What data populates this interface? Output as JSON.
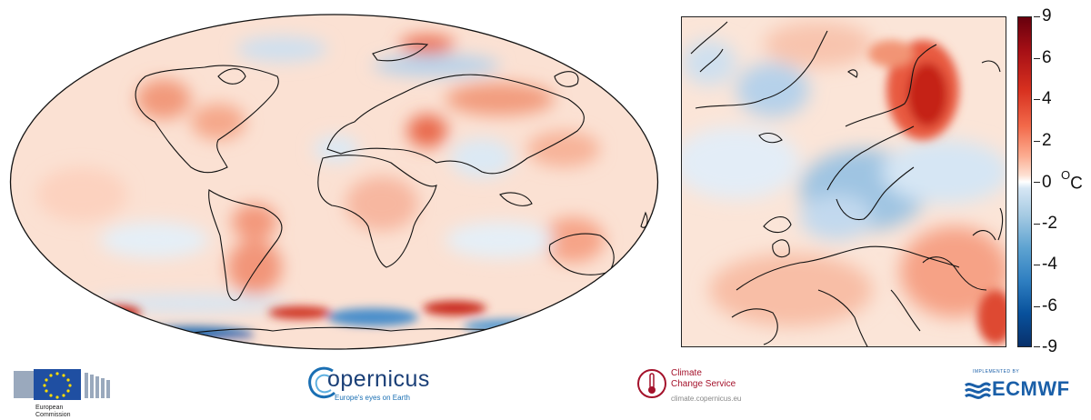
{
  "colorbar": {
    "ticks": [
      "9",
      "6",
      "4",
      "2",
      "0",
      "-2",
      "-4",
      "-6",
      "-9"
    ],
    "unit_degree": "O",
    "unit_letter": "C",
    "colors": {
      "max": "#67000d",
      "warm": "#d7301f",
      "mild_warm": "#fcab8f",
      "zero": "#ffffff",
      "mild_cool": "#a6cbe3",
      "cool": "#2f7fc1",
      "min": "#08306b"
    }
  },
  "footer": {
    "eu_logo": {
      "line1": "European",
      "line2": "Commission",
      "icon": "eu-flag-icon"
    },
    "copernicus_logo": {
      "name": "opernicus",
      "tagline": "Europe's eyes on Earth",
      "icon": "copernicus-c-icon"
    },
    "c3s_logo": {
      "line1": "Climate",
      "line2": "Change Service",
      "url": "climate.copernicus.eu",
      "icon": "thermometer-icon"
    },
    "ecmwf_logo": {
      "implemented_by": "IMPLEMENTED BY",
      "name": "ECMWF",
      "icon": "ecmwf-waves-icon"
    }
  }
}
